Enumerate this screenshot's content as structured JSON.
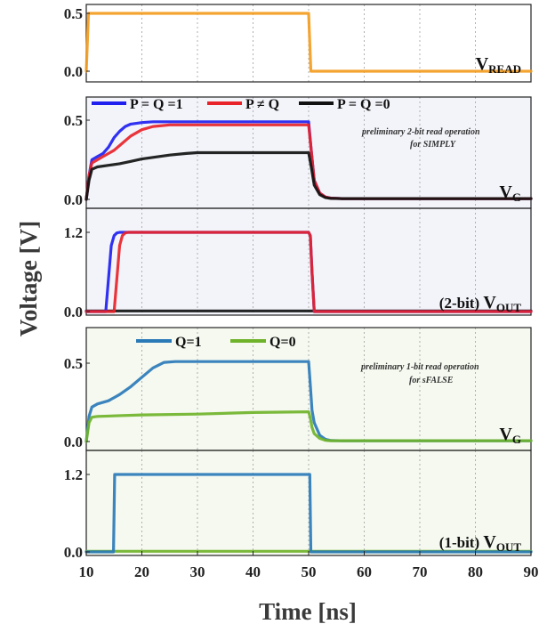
{
  "figure": {
    "y_axis_label": "Voltage [V]",
    "x_axis_label": "Time [ns]",
    "x_ticks": [
      "10",
      "20",
      "30",
      "40",
      "50",
      "60",
      "70",
      "80",
      "90"
    ]
  },
  "colors": {
    "vread": "#f39c1e",
    "p_eq_q_1": "#1f1ff0",
    "p_neq_q": "#e8232a",
    "p_eq_q_0": "#111111",
    "q1": "#2a7ab8",
    "q0": "#6fb32a",
    "panel_bg_2bit": "#f3f4fa",
    "panel_bg_1bit": "#f5f9ef"
  },
  "chart_data": [
    {
      "type": "line",
      "panel": "vread",
      "trace_label": {
        "main": "V",
        "sub": "READ"
      },
      "x_range": [
        10,
        90
      ],
      "y_ticks": [
        "0.5",
        "0.0"
      ],
      "series": [
        {
          "key": "vread",
          "x": [
            10,
            10.4,
            50,
            50.4,
            90
          ],
          "y": [
            0,
            0.5,
            0.5,
            0,
            0
          ]
        }
      ]
    },
    {
      "type": "line",
      "panel": "vg_2bit",
      "legend": [
        "P = Q =1",
        "P ≠ Q",
        "P = Q =0"
      ],
      "annotation": [
        "preliminary 2-bit read operation",
        "for SIMPLY"
      ],
      "trace_label": {
        "main": "V",
        "sub": "G"
      },
      "x_range": [
        10,
        90
      ],
      "y_ticks": [
        "0.5",
        "0.0"
      ],
      "series": [
        {
          "name": "P = Q =1",
          "key": "p_eq_q_1",
          "x": [
            10,
            10.5,
            11,
            12,
            13,
            14,
            15,
            16,
            17,
            18,
            20,
            22,
            25,
            30,
            40,
            50,
            50.5,
            51,
            52,
            53,
            54,
            56,
            60,
            70,
            80,
            90
          ],
          "y": [
            0,
            0.15,
            0.25,
            0.27,
            0.29,
            0.33,
            0.39,
            0.43,
            0.46,
            0.475,
            0.485,
            0.49,
            0.49,
            0.49,
            0.49,
            0.49,
            0.3,
            0.12,
            0.04,
            0.015,
            0.008,
            0.005,
            0.005,
            0.005,
            0.005,
            0.005
          ]
        },
        {
          "name": "P ≠ Q",
          "key": "p_neq_q",
          "x": [
            10,
            10.5,
            11,
            12,
            13,
            14,
            15,
            16,
            18,
            20,
            22,
            25,
            30,
            40,
            50,
            50.5,
            51,
            52,
            53,
            54,
            56,
            60,
            70,
            80,
            90
          ],
          "y": [
            0,
            0.15,
            0.23,
            0.25,
            0.27,
            0.29,
            0.31,
            0.34,
            0.4,
            0.44,
            0.46,
            0.47,
            0.47,
            0.47,
            0.47,
            0.3,
            0.12,
            0.04,
            0.015,
            0.008,
            0.005,
            0.005,
            0.005,
            0.005,
            0.005
          ]
        },
        {
          "name": "P = Q =0",
          "key": "p_eq_q_0",
          "x": [
            10,
            10.5,
            11,
            12,
            14,
            16,
            18,
            20,
            22,
            25,
            28,
            30,
            35,
            40,
            45,
            50,
            50.5,
            51,
            52,
            53,
            54,
            56,
            60,
            70,
            80,
            90
          ],
          "y": [
            0,
            0.12,
            0.19,
            0.205,
            0.215,
            0.225,
            0.24,
            0.255,
            0.265,
            0.28,
            0.29,
            0.295,
            0.295,
            0.295,
            0.295,
            0.295,
            0.2,
            0.09,
            0.03,
            0.012,
            0.006,
            0.005,
            0.005,
            0.005,
            0.005,
            0.005
          ]
        }
      ]
    },
    {
      "type": "line",
      "panel": "vout_2bit",
      "trace_label": {
        "prefix": "(2-bit)",
        "main": "V",
        "sub": "OUT"
      },
      "x_range": [
        10,
        90
      ],
      "y_ticks": [
        "1.2",
        "0.0"
      ],
      "series": [
        {
          "name": "P = Q =0",
          "key": "p_eq_q_0",
          "x": [
            10,
            90
          ],
          "y": [
            0.01,
            0.01
          ]
        },
        {
          "name": "P = Q =1",
          "key": "p_eq_q_1",
          "x": [
            10,
            13.5,
            14,
            14.5,
            15,
            15.5,
            16,
            50,
            50.3,
            50.6,
            51,
            90
          ],
          "y": [
            0,
            0,
            0.5,
            1.0,
            1.15,
            1.19,
            1.2,
            1.2,
            1.15,
            0.6,
            0,
            0
          ]
        },
        {
          "name": "P ≠ Q",
          "key": "p_neq_q",
          "x": [
            10,
            15,
            15.5,
            16,
            16.5,
            17,
            17.5,
            50,
            50.3,
            50.6,
            51,
            90
          ],
          "y": [
            0,
            0,
            0.5,
            1.0,
            1.15,
            1.19,
            1.2,
            1.2,
            1.15,
            0.6,
            0,
            0
          ]
        }
      ]
    },
    {
      "type": "line",
      "panel": "vg_1bit",
      "legend": [
        "Q=1",
        "Q=0"
      ],
      "annotation": [
        "preliminary 1-bit read operation",
        "for sFALSE"
      ],
      "trace_label": {
        "main": "V",
        "sub": "G"
      },
      "x_range": [
        10,
        90
      ],
      "y_ticks": [
        "0.5",
        "0.0"
      ],
      "series": [
        {
          "name": "Q=1",
          "key": "q1",
          "x": [
            10,
            10.5,
            11,
            12,
            14,
            16,
            18,
            20,
            22,
            24,
            26,
            30,
            40,
            50,
            50.3,
            50.6,
            51,
            52,
            53,
            54,
            56,
            60,
            70,
            80,
            90
          ],
          "y": [
            0,
            0.16,
            0.22,
            0.24,
            0.26,
            0.3,
            0.35,
            0.41,
            0.47,
            0.505,
            0.51,
            0.51,
            0.51,
            0.51,
            0.36,
            0.2,
            0.12,
            0.04,
            0.015,
            0.006,
            0.005,
            0.005,
            0.005,
            0.005,
            0.005
          ]
        },
        {
          "name": "Q=0",
          "key": "q0",
          "x": [
            10,
            10.5,
            11,
            12,
            20,
            30,
            40,
            50,
            50.3,
            50.6,
            51,
            52,
            53,
            54,
            56,
            60,
            70,
            80,
            90
          ],
          "y": [
            0,
            0.12,
            0.155,
            0.16,
            0.17,
            0.175,
            0.185,
            0.19,
            0.15,
            0.09,
            0.05,
            0.02,
            0.008,
            0.005,
            0.005,
            0.005,
            0.005,
            0.005,
            0.005
          ]
        }
      ]
    },
    {
      "type": "line",
      "panel": "vout_1bit",
      "trace_label": {
        "prefix": "(1-bit)",
        "main": "V",
        "sub": "OUT"
      },
      "x_range": [
        10,
        90
      ],
      "y_ticks": [
        "1.2",
        "0.0"
      ],
      "series": [
        {
          "name": "Q=0",
          "key": "q0",
          "x": [
            10,
            90
          ],
          "y": [
            0.01,
            0.01
          ]
        },
        {
          "name": "Q=1",
          "key": "q1",
          "x": [
            10,
            14.9,
            15.1,
            50,
            50.2,
            50.4,
            90
          ],
          "y": [
            0,
            0,
            1.2,
            1.2,
            1.2,
            0,
            0
          ]
        }
      ]
    }
  ]
}
